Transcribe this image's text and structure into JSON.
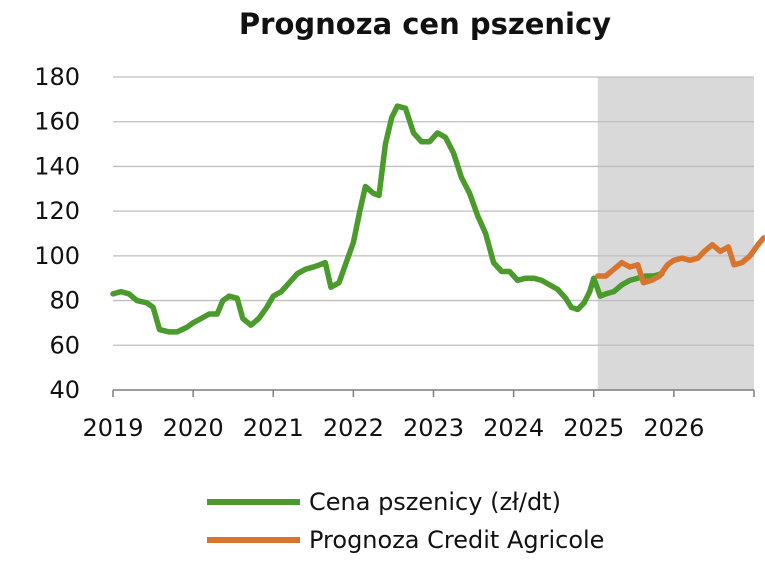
{
  "chart_data": {
    "type": "line",
    "title": "Prognoza cen pszenicy",
    "xlabel": "",
    "ylabel": "",
    "xlim": [
      2019,
      2027
    ],
    "ylim": [
      40,
      180
    ],
    "y_ticks": [
      40,
      60,
      80,
      100,
      120,
      140,
      160,
      180
    ],
    "x_ticks": [
      2019,
      2020,
      2021,
      2022,
      2023,
      2024,
      2025,
      2026
    ],
    "x_tick_labels": [
      "2019",
      "2020",
      "2021",
      "2022",
      "2023",
      "2024",
      "2025",
      "2026"
    ],
    "grid": true,
    "shaded_region": {
      "x_start": 2025.05,
      "x_end": 2027,
      "color": "#d9d9d9"
    },
    "legend_position": "bottom",
    "series": [
      {
        "name": "Cena pszenicy (zł/dt)",
        "color": "#4a9a2c",
        "points": [
          [
            2019.0,
            83
          ],
          [
            2019.1,
            84
          ],
          [
            2019.2,
            83
          ],
          [
            2019.3,
            80
          ],
          [
            2019.42,
            79
          ],
          [
            2019.5,
            77
          ],
          [
            2019.58,
            67
          ],
          [
            2019.7,
            66
          ],
          [
            2019.8,
            66
          ],
          [
            2019.92,
            68
          ],
          [
            2020.0,
            70
          ],
          [
            2020.1,
            72
          ],
          [
            2020.2,
            74
          ],
          [
            2020.3,
            74
          ],
          [
            2020.37,
            80
          ],
          [
            2020.45,
            82
          ],
          [
            2020.55,
            81
          ],
          [
            2020.62,
            72
          ],
          [
            2020.72,
            69
          ],
          [
            2020.82,
            72
          ],
          [
            2020.92,
            77
          ],
          [
            2021.0,
            82
          ],
          [
            2021.1,
            84
          ],
          [
            2021.2,
            88
          ],
          [
            2021.3,
            92
          ],
          [
            2021.4,
            94
          ],
          [
            2021.5,
            95
          ],
          [
            2021.58,
            96
          ],
          [
            2021.65,
            97
          ],
          [
            2021.72,
            86
          ],
          [
            2021.82,
            88
          ],
          [
            2021.92,
            98
          ],
          [
            2022.0,
            106
          ],
          [
            2022.08,
            120
          ],
          [
            2022.15,
            131
          ],
          [
            2022.25,
            128
          ],
          [
            2022.32,
            127
          ],
          [
            2022.4,
            150
          ],
          [
            2022.48,
            162
          ],
          [
            2022.55,
            167
          ],
          [
            2022.65,
            166
          ],
          [
            2022.75,
            155
          ],
          [
            2022.85,
            151
          ],
          [
            2022.95,
            151
          ],
          [
            2023.05,
            155
          ],
          [
            2023.15,
            153
          ],
          [
            2023.25,
            146
          ],
          [
            2023.35,
            135
          ],
          [
            2023.45,
            128
          ],
          [
            2023.55,
            118
          ],
          [
            2023.65,
            110
          ],
          [
            2023.75,
            97
          ],
          [
            2023.85,
            93
          ],
          [
            2023.95,
            93
          ],
          [
            2024.05,
            89
          ],
          [
            2024.15,
            90
          ],
          [
            2024.25,
            90
          ],
          [
            2024.35,
            89
          ],
          [
            2024.45,
            87
          ],
          [
            2024.55,
            85
          ],
          [
            2024.65,
            81
          ],
          [
            2024.72,
            77
          ],
          [
            2024.8,
            76
          ],
          [
            2024.88,
            79
          ],
          [
            2024.95,
            84
          ],
          [
            2025.0,
            90
          ],
          [
            2025.08,
            82
          ],
          [
            2025.15,
            83
          ],
          [
            2025.25,
            84
          ],
          [
            2025.35,
            87
          ],
          [
            2025.45,
            89
          ],
          [
            2025.55,
            90
          ],
          [
            2025.65,
            91
          ],
          [
            2025.75,
            91
          ],
          [
            2025.85,
            92
          ]
        ]
      },
      {
        "name": "Prognoza Credit Agricole",
        "color": "#d9742f",
        "points": [
          [
            2025.05,
            91
          ],
          [
            2025.15,
            91
          ],
          [
            2025.25,
            94
          ],
          [
            2025.35,
            97
          ],
          [
            2025.45,
            95
          ],
          [
            2025.55,
            96
          ],
          [
            2025.62,
            88
          ],
          [
            2025.72,
            89
          ],
          [
            2025.82,
            91
          ],
          [
            2025.92,
            96
          ],
          [
            2026.0,
            98
          ],
          [
            2026.1,
            99
          ],
          [
            2026.2,
            98
          ],
          [
            2026.3,
            99
          ],
          [
            2026.38,
            102
          ],
          [
            2026.48,
            105
          ],
          [
            2026.58,
            102
          ],
          [
            2026.68,
            104
          ],
          [
            2026.75,
            96
          ],
          [
            2026.85,
            97
          ],
          [
            2026.95,
            100
          ],
          [
            2027.05,
            105
          ],
          [
            2027.12,
            108
          ],
          [
            2027.2,
            108
          ]
        ]
      }
    ]
  }
}
